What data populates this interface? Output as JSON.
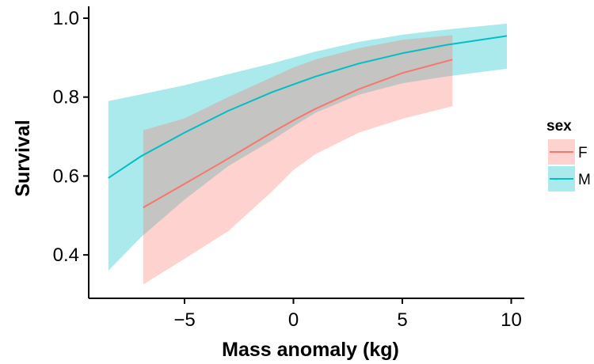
{
  "chart_data": {
    "type": "line",
    "xlabel": "Mass anomaly (kg)",
    "ylabel": "Survival",
    "xlim": [
      -9.4,
      10.6
    ],
    "ylim": [
      0.29,
      1.03
    ],
    "x_ticks": [
      -5,
      0,
      5,
      10
    ],
    "x_tick_labels": [
      "−5",
      "0",
      "5",
      "10"
    ],
    "y_ticks": [
      0.4,
      0.6,
      0.8,
      1.0
    ],
    "y_tick_labels": [
      "0.4",
      "0.6",
      "0.8",
      "1.0"
    ],
    "grid": false,
    "legend": {
      "title": "sex",
      "position": "right"
    },
    "series": [
      {
        "name": "F",
        "color": "#F8766D",
        "ribbon_color": "#F8766D",
        "x": [
          -6.9,
          -5,
          -3,
          -1,
          0,
          1,
          3,
          5,
          7.3
        ],
        "y": [
          0.52,
          0.58,
          0.644,
          0.71,
          0.741,
          0.77,
          0.82,
          0.861,
          0.895
        ],
        "lower": [
          0.325,
          0.39,
          0.46,
          0.56,
          0.615,
          0.655,
          0.71,
          0.745,
          0.777
        ],
        "upper": [
          0.716,
          0.746,
          0.8,
          0.85,
          0.875,
          0.895,
          0.924,
          0.945,
          0.957
        ]
      },
      {
        "name": "M",
        "color": "#00BFC4",
        "ribbon_color": "#00BFC4",
        "x": [
          -8.5,
          -7,
          -5,
          -3,
          -1,
          0,
          1,
          3,
          5,
          7,
          9.8
        ],
        "y": [
          0.595,
          0.65,
          0.71,
          0.765,
          0.812,
          0.832,
          0.852,
          0.885,
          0.911,
          0.932,
          0.955
        ],
        "lower": [
          0.36,
          0.445,
          0.54,
          0.625,
          0.69,
          0.726,
          0.76,
          0.806,
          0.835,
          0.852,
          0.872
        ],
        "upper": [
          0.79,
          0.807,
          0.83,
          0.858,
          0.885,
          0.9,
          0.915,
          0.94,
          0.958,
          0.971,
          0.986
        ]
      }
    ]
  }
}
